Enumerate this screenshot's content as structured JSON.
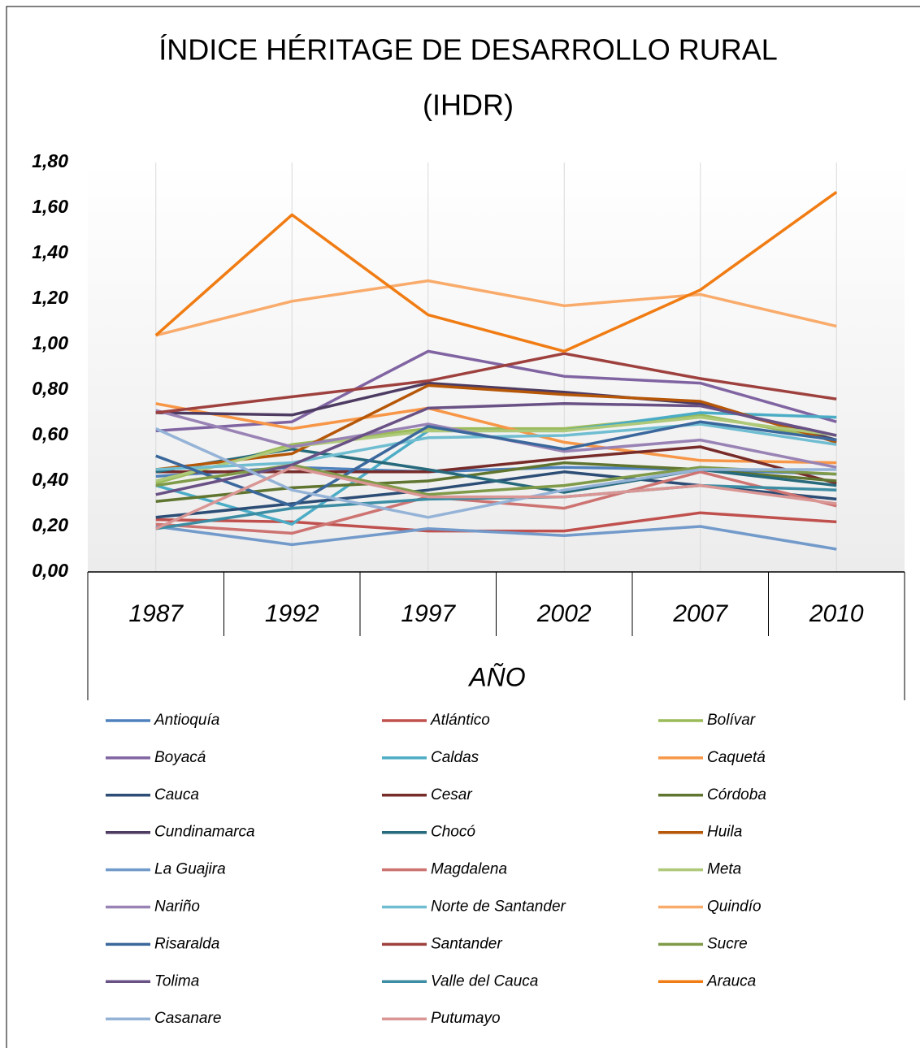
{
  "chart_data": {
    "type": "line",
    "title": "ÍNDICE HÉRITAGE DE DESARROLLO RURAL",
    "subtitle": "(IHDR)",
    "x_label": "AÑO",
    "categories": [
      "1987",
      "1992",
      "1997",
      "2002",
      "2007",
      "2010"
    ],
    "ylim": [
      0,
      1.8
    ],
    "yticks": [
      {
        "value": 0,
        "label": "0,00"
      },
      {
        "value": 0.2,
        "label": "0,20"
      },
      {
        "value": 0.4,
        "label": "0,40"
      },
      {
        "value": 0.6,
        "label": "0,60"
      },
      {
        "value": 0.8,
        "label": "0,80"
      },
      {
        "value": 1.0,
        "label": "1,00"
      },
      {
        "value": 1.2,
        "label": "1,20"
      },
      {
        "value": 1.4,
        "label": "1,40"
      },
      {
        "value": 1.6,
        "label": "1,60"
      },
      {
        "value": 1.8,
        "label": "1,80"
      }
    ],
    "grid": true,
    "series": [
      {
        "name": "Antioquía",
        "color": "#4f81bd",
        "values": [
          0.42,
          0.46,
          0.44,
          0.46,
          0.45,
          0.43
        ]
      },
      {
        "name": "Atlántico",
        "color": "#c0504d",
        "values": [
          0.23,
          0.22,
          0.18,
          0.18,
          0.26,
          0.22
        ]
      },
      {
        "name": "Bolívar",
        "color": "#9bbb59",
        "values": [
          0.39,
          0.56,
          0.63,
          0.63,
          0.69,
          0.58
        ]
      },
      {
        "name": "Boyacá",
        "color": "#8064a2",
        "values": [
          0.62,
          0.66,
          0.97,
          0.86,
          0.83,
          0.66
        ]
      },
      {
        "name": "Caldas",
        "color": "#4bacc6",
        "values": [
          0.38,
          0.21,
          0.62,
          0.62,
          0.7,
          0.68
        ]
      },
      {
        "name": "Caquetá",
        "color": "#f79646",
        "values": [
          0.74,
          0.63,
          0.72,
          0.57,
          0.49,
          0.48
        ]
      },
      {
        "name": "Cauca",
        "color": "#2c4d75",
        "values": [
          0.24,
          0.3,
          0.36,
          0.44,
          0.38,
          0.32
        ]
      },
      {
        "name": "Cesar",
        "color": "#772c2a",
        "values": [
          0.44,
          0.44,
          0.44,
          0.5,
          0.55,
          0.39
        ]
      },
      {
        "name": "Córdoba",
        "color": "#5f7530",
        "values": [
          0.31,
          0.37,
          0.4,
          0.48,
          0.45,
          0.4
        ]
      },
      {
        "name": "Cundinamarca",
        "color": "#4d3b62",
        "values": [
          0.7,
          0.69,
          0.83,
          0.79,
          0.74,
          0.58
        ]
      },
      {
        "name": "Chocó",
        "color": "#276a7c",
        "values": [
          0.44,
          0.54,
          0.45,
          0.35,
          0.45,
          0.38
        ]
      },
      {
        "name": "Huila",
        "color": "#b65708",
        "values": [
          0.45,
          0.52,
          0.82,
          0.78,
          0.75,
          0.57
        ]
      },
      {
        "name": "La Guajira",
        "color": "#729aca",
        "values": [
          0.2,
          0.12,
          0.19,
          0.16,
          0.2,
          0.1
        ]
      },
      {
        "name": "Magdalena",
        "color": "#cd7371",
        "values": [
          0.21,
          0.17,
          0.33,
          0.28,
          0.44,
          0.29
        ]
      },
      {
        "name": "Meta",
        "color": "#afc97a",
        "values": [
          0.4,
          0.55,
          0.62,
          0.62,
          0.68,
          0.6
        ]
      },
      {
        "name": "Nariño",
        "color": "#9983b5",
        "values": [
          0.71,
          0.55,
          0.65,
          0.53,
          0.58,
          0.46
        ]
      },
      {
        "name": "Norte de Santander",
        "color": "#6fbdd1",
        "values": [
          0.45,
          0.48,
          0.59,
          0.6,
          0.65,
          0.56
        ]
      },
      {
        "name": "Quindío",
        "color": "#f9ab6b",
        "values": [
          1.04,
          1.19,
          1.28,
          1.17,
          1.22,
          1.08
        ]
      },
      {
        "name": "Risaralda",
        "color": "#3a679c",
        "values": [
          0.51,
          0.29,
          0.64,
          0.54,
          0.66,
          0.58
        ]
      },
      {
        "name": "Santander",
        "color": "#9e413e",
        "values": [
          0.7,
          0.77,
          0.84,
          0.96,
          0.85,
          0.76
        ]
      },
      {
        "name": "Sucre",
        "color": "#7f9a48",
        "values": [
          0.38,
          0.47,
          0.34,
          0.38,
          0.46,
          0.43
        ]
      },
      {
        "name": "Tolima",
        "color": "#695185",
        "values": [
          0.34,
          0.47,
          0.72,
          0.74,
          0.73,
          0.6
        ]
      },
      {
        "name": "Valle del Cauca",
        "color": "#3c8da3",
        "values": [
          0.19,
          0.28,
          0.32,
          0.33,
          0.38,
          0.36
        ]
      },
      {
        "name": "Arauca",
        "color": "#f07c13",
        "values": [
          1.04,
          1.57,
          1.13,
          0.97,
          1.24,
          1.67
        ]
      },
      {
        "name": "Casanare",
        "color": "#95b3d7",
        "values": [
          0.63,
          0.36,
          0.24,
          0.36,
          0.45,
          0.45
        ]
      },
      {
        "name": "Putumayo",
        "color": "#d99694",
        "values": [
          0.19,
          0.46,
          0.33,
          0.33,
          0.38,
          0.3
        ]
      }
    ]
  }
}
